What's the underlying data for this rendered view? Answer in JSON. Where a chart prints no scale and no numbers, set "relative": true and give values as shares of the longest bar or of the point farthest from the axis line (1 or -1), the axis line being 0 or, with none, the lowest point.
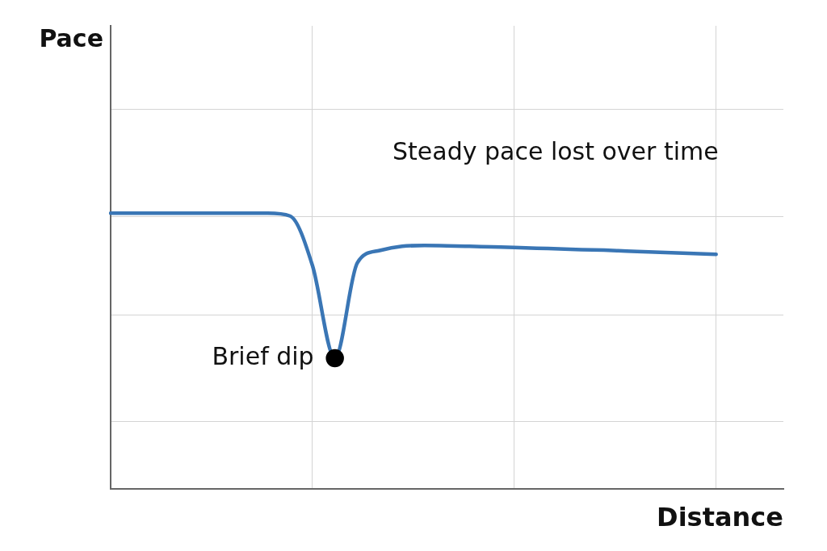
{
  "chart_data": {
    "type": "line",
    "relative": true,
    "xlabel": "Distance",
    "categories": [
      null,
      null,
      null,
      null,
      null,
      null,
      null,
      null,
      null,
      null,
      null,
      null,
      null,
      null,
      null,
      null,
      null,
      null,
      null,
      null,
      null,
      null,
      null,
      null,
      null,
      null,
      null,
      null,
      null,
      null,
      null
    ],
    "series": [
      {
        "color": "#3a76b5",
        "values": [
          1,
          1,
          1,
          1,
          1,
          1,
          1,
          1,
          0.99,
          0.81,
          0.474,
          0.82,
          0.865,
          0.88,
          0.883,
          0.882,
          0.88,
          0.878,
          0.876,
          0.873,
          0.871,
          0.868,
          0.866,
          0.863,
          0.86,
          0.857,
          0.854,
          0.851,
          null,
          null,
          null
        ]
      }
    ],
    "annotations": [
      "Pace",
      "Brief dip",
      "Steady pace lost over time"
    ],
    "grid": true,
    "legend": false,
    "marker": "none",
    "line_style": "solid",
    "tick_labels": false
  }
}
